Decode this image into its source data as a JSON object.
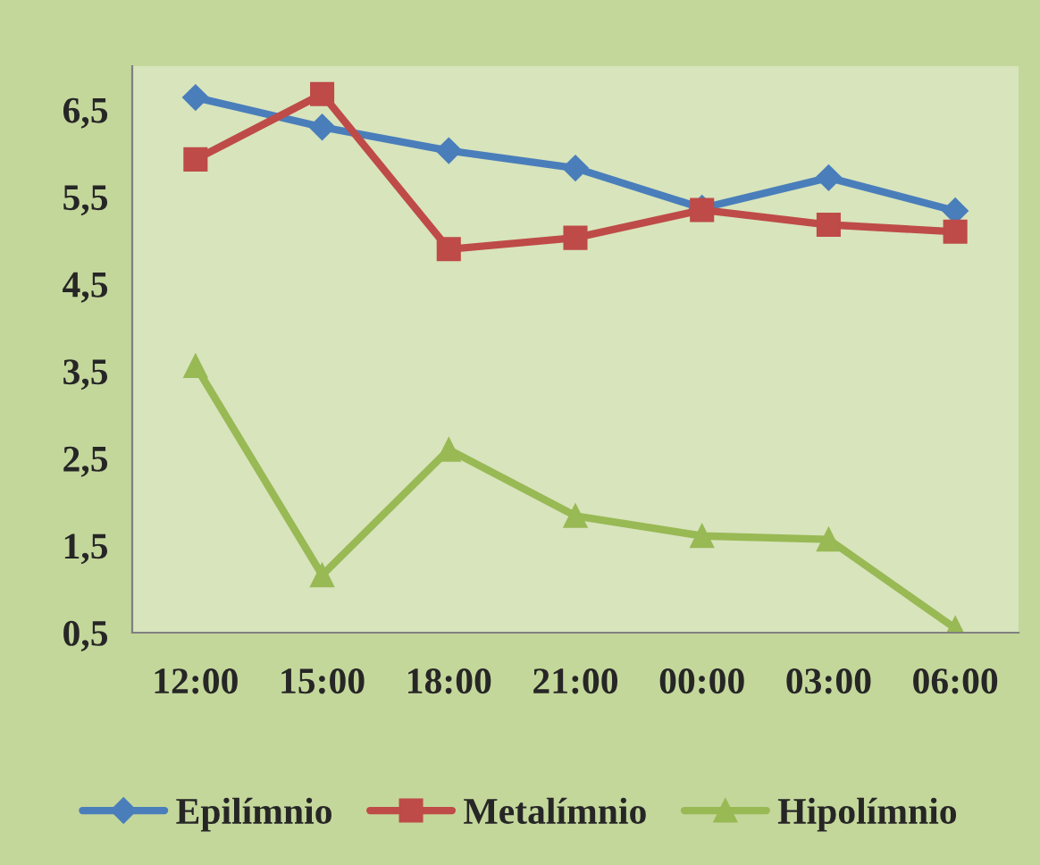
{
  "chart_data": {
    "type": "line",
    "categories": [
      "12:00",
      "15:00",
      "18:00",
      "21:00",
      "00:00",
      "03:00",
      "06:00"
    ],
    "series": [
      {
        "name": "Epilímnio",
        "color": "#4a7ebb",
        "marker": "diamond",
        "values": [
          6.64,
          6.3,
          6.03,
          5.83,
          5.37,
          5.72,
          5.34
        ]
      },
      {
        "name": "Metalímnio",
        "color": "#be4b48",
        "marker": "square",
        "values": [
          5.93,
          6.68,
          4.9,
          5.03,
          5.35,
          5.18,
          5.1
        ]
      },
      {
        "name": "Hipolímnio",
        "color": "#98b954",
        "marker": "triangle",
        "values": [
          3.56,
          1.16,
          2.6,
          1.84,
          1.61,
          1.57,
          0.55
        ]
      }
    ],
    "ylim": [
      0.5,
      7.0
    ],
    "yticks": [
      {
        "value": 0.5,
        "label": "0,5"
      },
      {
        "value": 1.5,
        "label": "1,5"
      },
      {
        "value": 2.5,
        "label": "2,5"
      },
      {
        "value": 3.5,
        "label": "3,5"
      },
      {
        "value": 4.5,
        "label": "4,5"
      },
      {
        "value": 5.5,
        "label": "5,5"
      },
      {
        "value": 6.5,
        "label": "6,5"
      }
    ],
    "grid": false,
    "legend": "bottom",
    "line_style": "solid"
  }
}
